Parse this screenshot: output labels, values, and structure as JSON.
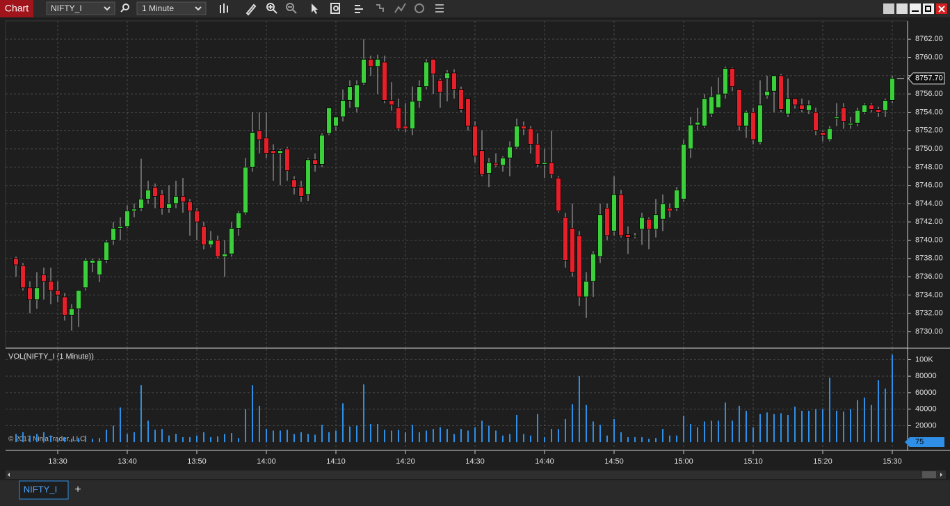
{
  "window": {
    "app_label": "Chart",
    "instrument": "NIFTY_I",
    "interval": "1 Minute",
    "copyright": "© 2017 NinjaTrader, LLC",
    "tabs": [
      "NIFTY_I"
    ],
    "add_tab": "+"
  },
  "chart_data": [
    {
      "type": "candlestick",
      "categories": [
        null,
        null,
        null,
        null,
        null,
        null,
        "13:30",
        null,
        null,
        null,
        null,
        null,
        null,
        null,
        null,
        null,
        "13:40",
        null,
        null,
        null,
        null,
        null,
        null,
        null,
        null,
        null,
        "13:50",
        null,
        null,
        null,
        null,
        null,
        null,
        null,
        null,
        null,
        "14:00",
        null,
        null,
        null,
        null,
        null,
        null,
        null,
        null,
        null,
        "14:10",
        null,
        null,
        null,
        null,
        null,
        null,
        null,
        null,
        null,
        "14:20",
        null,
        null,
        null,
        null,
        null,
        null,
        null,
        null,
        null,
        "14:30",
        null,
        null,
        null,
        null,
        null,
        null,
        null,
        null,
        null,
        "14:40",
        null,
        null,
        null,
        null,
        null,
        null,
        null,
        null,
        null,
        "14:50",
        null,
        null,
        null,
        null,
        null,
        null,
        null,
        null,
        null,
        "15:00",
        null,
        null,
        null,
        null,
        null,
        null,
        null,
        null,
        null,
        "15:10",
        null,
        null,
        null,
        null,
        null,
        null,
        null,
        null,
        null,
        "15:20",
        null,
        null,
        null,
        null,
        null,
        null,
        null,
        null,
        null,
        "15:30"
      ],
      "open": [
        8738,
        8737.2,
        8734.8,
        8733.5,
        8736.2,
        8735.5,
        8734.5,
        8733.8,
        8731.8,
        8732.5,
        8734.8,
        8737.5,
        8736.2,
        8737.8,
        8740,
        8741.3,
        8741.5,
        8743.2,
        8743.5,
        8744.5,
        8745.8,
        8745,
        8743.5,
        8744,
        8744.8,
        8744.2,
        8743.2,
        8741.5,
        8739.5,
        8740,
        8738.2,
        8738.5,
        8741.3,
        8743,
        8748,
        8752,
        8751.2,
        8749.8,
        8749.5,
        8750,
        8746.6,
        8745.8,
        8745,
        8748.8,
        8748.3,
        8751.7,
        8752.5,
        8753.5,
        8755.3,
        8754.5,
        8757.2,
        8759.8,
        8759,
        8759.5,
        8755.3,
        8754.5,
        8752.5,
        8752.2,
        8755.2,
        8756.8,
        8759.8,
        8757.5,
        8757.7,
        8758.3,
        8756.5,
        8755.5,
        8752.5,
        8749.8,
        8747.3,
        8748.4,
        8748.2,
        8749,
        8750.2,
        8752.5,
        8752.2,
        8750.5,
        8748.3,
        8748.5,
        8746.8,
        8742.5,
        8741.3,
        8740.5,
        8733.8,
        8735.5,
        8738.2,
        8743.5,
        8741,
        8745,
        8740.6,
        8740.4,
        8741.2,
        8742.3,
        8741.2,
        8742.3,
        8743.5,
        8743.5,
        8744.5,
        8750,
        8752.6,
        8752.5,
        8753.8,
        8754.5,
        8756,
        8758.8,
        8756.5,
        8752.5,
        8754,
        8750.7,
        8755.8,
        8756.3,
        8758,
        8753.8,
        8755.5,
        8754.8,
        8754.2,
        8754,
        8751.8,
        8751,
        8753.3,
        8754.5,
        8752.6,
        8752.8,
        8754,
        8754.8,
        8754.3,
        8754.2,
        8755.3
      ],
      "high": [
        8738.2,
        8737.5,
        8735.5,
        8736.5,
        8737,
        8737,
        8735.5,
        8734.2,
        8733,
        8734.5,
        8738,
        8738,
        8738,
        8740,
        8742,
        8742.5,
        8743.8,
        8744,
        8748.9,
        8746.5,
        8746.2,
        8745.5,
        8746,
        8746.5,
        8746.8,
        8744.5,
        8743.5,
        8742,
        8741,
        8740.5,
        8740,
        8742,
        8743.2,
        8749,
        8754,
        8754,
        8754,
        8750.5,
        8750,
        8750.2,
        8747,
        8746.5,
        8749,
        8749.5,
        8751.7,
        8754.5,
        8753.5,
        8756.5,
        8757.5,
        8757.5,
        8762,
        8760.2,
        8760.3,
        8760.2,
        8757.3,
        8755.5,
        8755,
        8756.8,
        8757.5,
        8759.8,
        8759.8,
        8757.7,
        8758.6,
        8758.7,
        8756.8,
        8755.5,
        8753,
        8752,
        8749,
        8749.5,
        8749.2,
        8750.8,
        8753.3,
        8753,
        8752.5,
        8751.7,
        8750,
        8752,
        8747,
        8743,
        8744,
        8741,
        8736.5,
        8738.8,
        8744,
        8744,
        8747,
        8745.5,
        8741.5,
        8740.8,
        8743,
        8742.5,
        8744.5,
        8745,
        8744,
        8745.8,
        8751,
        8753.5,
        8754.5,
        8756,
        8756.8,
        8757.8,
        8759,
        8758.9,
        8756.5,
        8754.2,
        8754.5,
        8757.5,
        8758,
        8758,
        8758.2,
        8757.7,
        8755.5,
        8755.5,
        8755.3,
        8754.5,
        8752,
        8752.5,
        8755,
        8755,
        8753.5,
        8754.5,
        8755,
        8755,
        8754.6,
        8755.5,
        8758
      ],
      "low": [
        8736,
        8734.5,
        8732,
        8732.5,
        8733.5,
        8733,
        8733.2,
        8731.2,
        8730.1,
        8730.5,
        8734.5,
        8736.5,
        8735.4,
        8737.5,
        8739.5,
        8740,
        8741.3,
        8742.5,
        8743.2,
        8744,
        8743.5,
        8742.8,
        8743,
        8743.5,
        8743,
        8740.5,
        8740,
        8739,
        8739.2,
        8738,
        8736,
        8738.2,
        8740.5,
        8742.8,
        8747.5,
        8749.5,
        8749,
        8746.5,
        8746,
        8746.5,
        8745,
        8744.2,
        8744.3,
        8747.5,
        8748,
        8751.5,
        8752,
        8753,
        8754.5,
        8754,
        8757,
        8758,
        8756,
        8755,
        8754.2,
        8752,
        8751.8,
        8751.5,
        8754.5,
        8756.5,
        8756,
        8754.5,
        8755.2,
        8755.5,
        8754,
        8752,
        8748.5,
        8747,
        8745.8,
        8748,
        8747.5,
        8747,
        8750,
        8751.5,
        8749.5,
        8748,
        8746.8,
        8746.8,
        8743,
        8737,
        8736,
        8732.8,
        8731.5,
        8733.8,
        8737.5,
        8740,
        8740.5,
        8740.3,
        8738.5,
        8740.2,
        8739.5,
        8739,
        8740.3,
        8741,
        8742.5,
        8743.2,
        8744.2,
        8749,
        8752,
        8752.3,
        8753.5,
        8754.5,
        8755.5,
        8756.3,
        8752,
        8751.2,
        8750.5,
        8750.5,
        8755.5,
        8754,
        8754,
        8753.5,
        8754.4,
        8754,
        8753.8,
        8751.5,
        8750.8,
        8750.8,
        8752.5,
        8752.2,
        8752.2,
        8752.5,
        8753.8,
        8754,
        8753.5,
        8753.5,
        8755
      ],
      "close": [
        8737.3,
        8734.8,
        8733.5,
        8734.8,
        8735.5,
        8734.5,
        8734,
        8731.8,
        8732.5,
        8734.5,
        8737.8,
        8737.8,
        8737.8,
        8739.8,
        8741.3,
        8741.5,
        8743.2,
        8743.4,
        8744.5,
        8745.5,
        8744.8,
        8743.5,
        8744,
        8744.8,
        8744.2,
        8743.2,
        8742,
        8739.5,
        8740,
        8738.2,
        8738.5,
        8741.3,
        8743,
        8748,
        8751.8,
        8751,
        8749.5,
        8749.5,
        8749.8,
        8747.6,
        8745.8,
        8744.8,
        8748.8,
        8748.3,
        8751.5,
        8754.5,
        8753.5,
        8755.3,
        8756.8,
        8757,
        8759.8,
        8759,
        8759.8,
        8755.3,
        8754.8,
        8752.2,
        8752.2,
        8755.2,
        8756.8,
        8759.5,
        8758.2,
        8756.2,
        8758.3,
        8756.5,
        8754.3,
        8752.5,
        8749.2,
        8747.2,
        8748.5,
        8748.2,
        8749,
        8750.2,
        8752.5,
        8752.2,
        8750.5,
        8748.3,
        8748.5,
        8747.2,
        8743.2,
        8737.8,
        8736.5,
        8733.8,
        8735.5,
        8738.5,
        8742.8,
        8740.5,
        8745,
        8740.5,
        8740.3,
        8740.5,
        8742.5,
        8741.2,
        8742.8,
        8744,
        8743.2,
        8745.5,
        8750.5,
        8752.6,
        8752.9,
        8755.5,
        8755.7,
        8756,
        8758.8,
        8756.8,
        8752.5,
        8754,
        8751,
        8754.8,
        8756.3,
        8758,
        8754.3,
        8755.5,
        8754.8,
        8754.3,
        8754.8,
        8752,
        8751.5,
        8752.2,
        8753.5,
        8753,
        8752.8,
        8754.2,
        8754.8,
        8754.3,
        8754,
        8755.3,
        8757.7
      ],
      "up_color": "#3ccf3c",
      "down_color": "#e5202a",
      "ylim": [
        8728.25,
        8764
      ],
      "yticks": [
        {
          "value": 8730,
          "label": "8730.00"
        },
        {
          "value": 8732,
          "label": "8732.00"
        },
        {
          "value": 8734,
          "label": "8734.00"
        },
        {
          "value": 8736,
          "label": "8736.00"
        },
        {
          "value": 8738,
          "label": "8738.00"
        },
        {
          "value": 8740,
          "label": "8740.00"
        },
        {
          "value": 8742,
          "label": "8742.00"
        },
        {
          "value": 8744,
          "label": "8744.00"
        },
        {
          "value": 8746,
          "label": "8746.00"
        },
        {
          "value": 8748,
          "label": "8748.00"
        },
        {
          "value": 8750,
          "label": "8750.00"
        },
        {
          "value": 8752,
          "label": "8752.00"
        },
        {
          "value": 8754,
          "label": "8754.00"
        },
        {
          "value": 8756,
          "label": "8756.00"
        },
        {
          "value": 8758,
          "label": "8758.00"
        },
        {
          "value": 8760,
          "label": "8760.00"
        },
        {
          "value": 8762,
          "label": "8762.00"
        }
      ],
      "last_price": 8757.7,
      "last_price_label": "8757.70",
      "grid": true
    },
    {
      "type": "bar",
      "title": "VOL(NIFTY_I (1 Minute))",
      "values": [
        10000,
        12000,
        8000,
        10000,
        12000,
        8000,
        5000,
        6000,
        4000,
        5000,
        8000,
        4000,
        5000,
        15000,
        20000,
        42000,
        10000,
        12000,
        69000,
        26000,
        15000,
        16000,
        8000,
        10000,
        6000,
        6000,
        8000,
        12000,
        6000,
        7000,
        10000,
        11000,
        5000,
        40000,
        69000,
        44000,
        16000,
        14000,
        14000,
        15000,
        10000,
        12000,
        10000,
        9000,
        21000,
        12000,
        14000,
        47000,
        19000,
        20000,
        70000,
        22000,
        22000,
        15000,
        14000,
        15000,
        12000,
        21000,
        12000,
        14000,
        16000,
        18000,
        16000,
        10000,
        16000,
        14000,
        18000,
        26000,
        20000,
        14000,
        8000,
        10000,
        33000,
        10000,
        8000,
        34000,
        6000,
        16000,
        16000,
        28000,
        46000,
        80000,
        45000,
        25000,
        21000,
        8000,
        28000,
        12000,
        6000,
        6000,
        6000,
        4000,
        5000,
        16000,
        8000,
        8000,
        32000,
        22000,
        18000,
        25000,
        26000,
        26000,
        48000,
        26000,
        44000,
        38000,
        18000,
        34000,
        36000,
        34000,
        35000,
        33000,
        43000,
        38000,
        38000,
        40000,
        40000,
        78000,
        38000,
        37000,
        40000,
        51000,
        54000,
        45000,
        75000,
        65000,
        106000
      ],
      "color": "#2f8fe6",
      "ylim": [
        -10000,
        113000
      ],
      "yticks": [
        20000,
        40000,
        60000,
        80000,
        {
          "value": 100000,
          "label": "100K"
        }
      ],
      "last_volume": 75,
      "grid": true
    }
  ]
}
